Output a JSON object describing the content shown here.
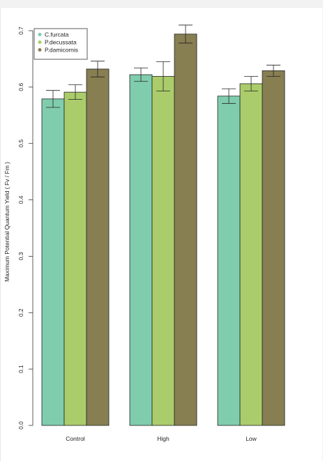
{
  "chart_data": {
    "type": "bar",
    "title": "",
    "xlabel": "",
    "ylabel": "Maximum Potential Quantum Yield ( Fv / Fm )",
    "ylim": [
      0,
      0.7
    ],
    "yticks": [
      0.0,
      0.1,
      0.2,
      0.3,
      0.4,
      0.5,
      0.6,
      0.7
    ],
    "ytick_labels": [
      "0.0",
      "0.1",
      "0.2",
      "0.3",
      "0.4",
      "0.5",
      "0.6",
      "0.7"
    ],
    "categories": [
      "Control",
      "High",
      "Low"
    ],
    "series": [
      {
        "name": "C.furcata",
        "color": "#80cdad",
        "values": [
          0.579,
          0.622,
          0.584
        ],
        "errors": [
          0.015,
          0.012,
          0.013
        ]
      },
      {
        "name": "P.decussata",
        "color": "#abcc6b",
        "values": [
          0.591,
          0.619,
          0.606
        ],
        "errors": [
          0.013,
          0.026,
          0.013
        ]
      },
      {
        "name": "P.damicornis",
        "color": "#877f52",
        "values": [
          0.632,
          0.694,
          0.629
        ],
        "errors": [
          0.014,
          0.016,
          0.01
        ]
      }
    ],
    "legend": {
      "position": "top-left"
    },
    "grid": false
  }
}
